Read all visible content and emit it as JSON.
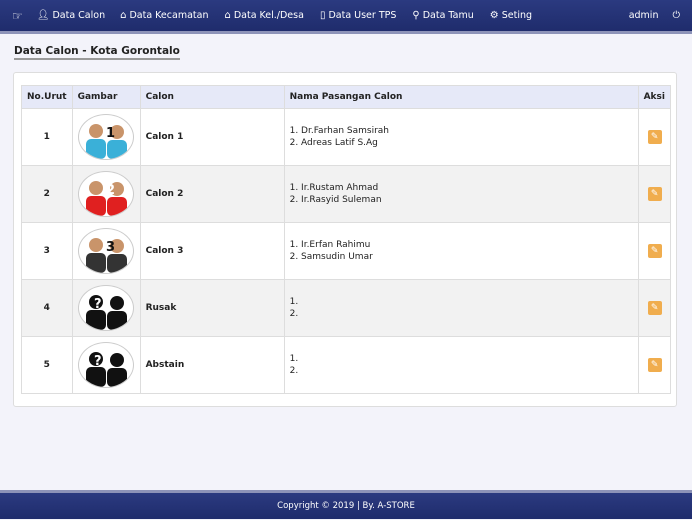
{
  "nav": {
    "items": [
      {
        "label": "Data Calon",
        "icon": "user-icon"
      },
      {
        "label": "Data Kecamatan",
        "icon": "home-icon"
      },
      {
        "label": "Data Kel./Desa",
        "icon": "home-icon"
      },
      {
        "label": "Data User TPS",
        "icon": "phone-icon"
      },
      {
        "label": "Data Tamu",
        "icon": "search-icon"
      },
      {
        "label": "Seting",
        "icon": "gear-icon"
      }
    ],
    "user": "admin"
  },
  "page_title": "Data Calon - Kota Gorontalo",
  "table": {
    "headers": [
      "No.Urut",
      "Gambar",
      "Calon",
      "Nama Pasangan Calon",
      "Aksi"
    ],
    "rows": [
      {
        "no": "1",
        "calon": "Calon 1",
        "p1": "1. Dr.Farhan Samsirah",
        "p2": "2. Adreas Latif S.Ag",
        "color": "#3ab0d8",
        "num": "1"
      },
      {
        "no": "2",
        "calon": "Calon 2",
        "p1": "1. Ir.Rustam Ahmad",
        "p2": "2. Ir.Rasyid Suleman",
        "color": "#e02020",
        "num": "2"
      },
      {
        "no": "3",
        "calon": "Calon 3",
        "p1": "1. Ir.Erfan Rahimu",
        "p2": "2. Samsudin Umar",
        "color": "#333333",
        "num": "3"
      },
      {
        "no": "4",
        "calon": "Rusak",
        "p1": "1.",
        "p2": "2.",
        "color": "#111111",
        "num": "?"
      },
      {
        "no": "5",
        "calon": "Abstain",
        "p1": "1.",
        "p2": "2.",
        "color": "#111111",
        "num": "?"
      }
    ]
  },
  "footer": "Copyright © 2019 | By. A-STORE",
  "colors": {
    "navbar": "#2b3a80",
    "edit_button": "#f0ad4e"
  }
}
